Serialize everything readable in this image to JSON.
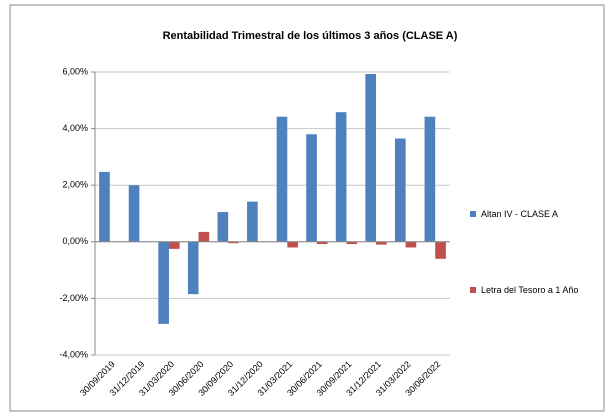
{
  "chart_data": {
    "type": "bar",
    "title": "Rentabilidad Trimestral de los últimos 3 años (CLASE A)",
    "categories": [
      "30/09/2019",
      "31/12/2019",
      "31/03/2020",
      "30/06/2020",
      "30/09/2020",
      "31/12/2020",
      "31/03/2021",
      "30/06/2021",
      "30/09/2021",
      "31/12/2021",
      "31/03/2022",
      "30/06/2022"
    ],
    "series": [
      {
        "name": "Altan IV - CLASE A",
        "color": "#4f81bd",
        "values": [
          2.47,
          2.0,
          -2.9,
          -1.85,
          1.05,
          1.42,
          4.42,
          3.8,
          4.58,
          5.93,
          3.65,
          4.42
        ]
      },
      {
        "name": "Letra del Tesoro a 1 Año",
        "color": "#c0504d",
        "values": [
          0,
          0,
          -0.25,
          0.35,
          -0.05,
          0,
          -0.2,
          -0.08,
          -0.08,
          -0.1,
          -0.2,
          -0.6
        ]
      }
    ],
    "ylim": [
      -4,
      6
    ],
    "yticks": [
      {
        "value": -4,
        "label": "-4,00%"
      },
      {
        "value": -2,
        "label": "-2,00%"
      },
      {
        "value": 0,
        "label": "0,00%"
      },
      {
        "value": 2,
        "label": "2,00%"
      },
      {
        "value": 4,
        "label": "4,00%"
      },
      {
        "value": 6,
        "label": "6,00%"
      }
    ],
    "grid": true,
    "legend": "right"
  }
}
